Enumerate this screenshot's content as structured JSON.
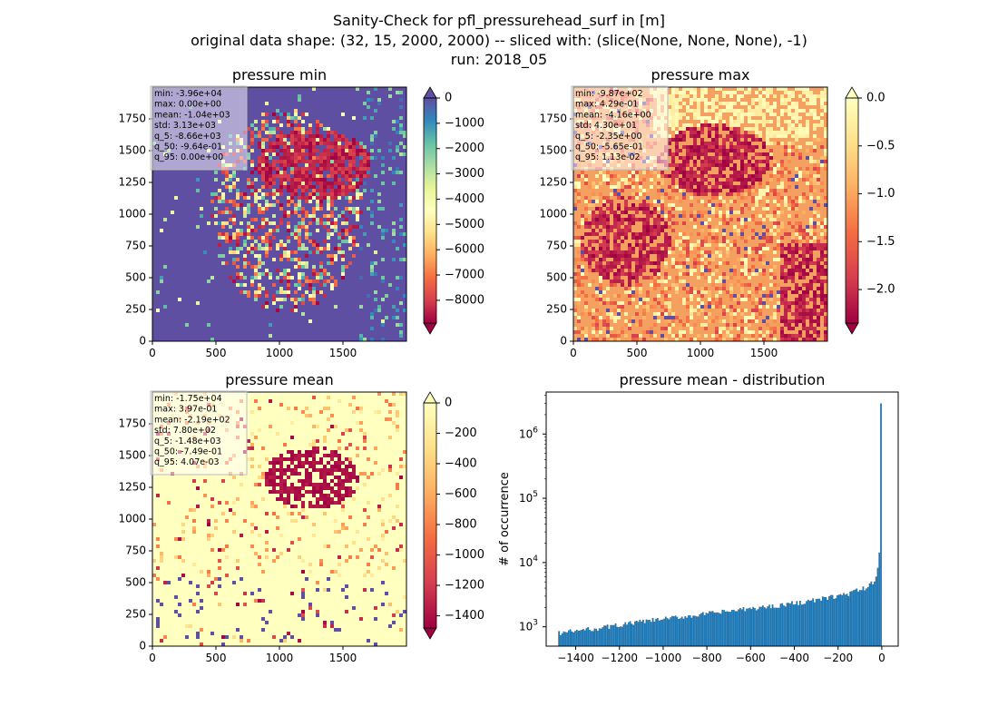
{
  "figure": {
    "title_lines": [
      "Sanity-Check for pfl_pressurehead_surf in [m]",
      "original data shape: (32, 15, 2000, 2000) -- sliced with: (slice(None, None, None), -1)",
      "run: 2018_05"
    ]
  },
  "chart_data": [
    {
      "type": "heatmap",
      "title": "pressure min",
      "colormap": "Spectral",
      "colormap_stops": [
        "#9e0142",
        "#d53e4f",
        "#f46d43",
        "#fdae61",
        "#fee08b",
        "#ffffbf",
        "#e6f598",
        "#abdda4",
        "#66c2a5",
        "#3288bd",
        "#5e4fa2"
      ],
      "x_ticks": [
        "0",
        "500",
        "1000",
        "1500"
      ],
      "y_ticks": [
        "0",
        "250",
        "500",
        "750",
        "1000",
        "1250",
        "1500",
        "1750"
      ],
      "xlim": [
        0,
        2000
      ],
      "ylim": [
        0,
        2000
      ],
      "colorbar": {
        "range": [
          -8900,
          0
        ],
        "ticks": [
          0,
          -1000,
          -2000,
          -3000,
          -4000,
          -5000,
          -6000,
          -7000,
          -8000
        ],
        "tick_labels": [
          "0",
          "−1000",
          "−2000",
          "−3000",
          "−4000",
          "−5000",
          "−6000",
          "−7000",
          "−8000"
        ],
        "extend": "both"
      },
      "stats": [
        "min: -3.96e+04",
        "max: 0.00e+00",
        "mean: -1.04e+03",
        "std: 3.13e+03",
        "q_5: -8.66e+03",
        "q_50: -9.64e-01",
        "q_95: 0.00e+00"
      ],
      "background_color": "#5e4fa2"
    },
    {
      "type": "heatmap",
      "title": "pressure max",
      "colormap": "Spectral",
      "colormap_stops": [
        "#9e0142",
        "#d53e4f",
        "#f46d43",
        "#fdae61",
        "#fee08b",
        "#ffffbf"
      ],
      "x_ticks": [
        "0",
        "500",
        "1000",
        "1500"
      ],
      "y_ticks": [
        "0",
        "250",
        "500",
        "750",
        "1000",
        "1250",
        "1500",
        "1750"
      ],
      "xlim": [
        0,
        2000
      ],
      "ylim": [
        0,
        2000
      ],
      "colorbar": {
        "range": [
          -2.35,
          0.0
        ],
        "ticks": [
          0.0,
          -0.5,
          -1.0,
          -1.5,
          -2.0
        ],
        "tick_labels": [
          "0.0",
          "−0.5",
          "−1.0",
          "−1.5",
          "−2.0"
        ],
        "extend": "both"
      },
      "stats": [
        "min: -9.87e+02",
        "max: 4.29e-01",
        "mean: -4.16e+00",
        "std: 4.30e+01",
        "q_5: -2.35e+00",
        "q_50: -5.65e-01",
        "q_95: 1.13e-02"
      ],
      "background_color": "#f4a060"
    },
    {
      "type": "heatmap",
      "title": "pressure mean",
      "colormap": "Spectral",
      "colormap_stops": [
        "#9e0142",
        "#d53e4f",
        "#f46d43",
        "#fdae61",
        "#fee08b",
        "#ffffbf"
      ],
      "x_ticks": [
        "0",
        "500",
        "1000",
        "1500"
      ],
      "y_ticks": [
        "0",
        "250",
        "500",
        "750",
        "1000",
        "1250",
        "1500",
        "1750"
      ],
      "xlim": [
        0,
        2000
      ],
      "ylim": [
        0,
        2000
      ],
      "colorbar": {
        "range": [
          -1480,
          0
        ],
        "ticks": [
          0,
          -200,
          -400,
          -600,
          -800,
          -1000,
          -1200,
          -1400
        ],
        "tick_labels": [
          "0",
          "−200",
          "−400",
          "−600",
          "−800",
          "−1000",
          "−1200",
          "−1400"
        ],
        "extend": "both"
      },
      "stats": [
        "min: -1.75e+04",
        "max: 3.97e-01",
        "mean: -2.19e+02",
        "std: 7.80e+02",
        "q_5: -1.48e+03",
        "q_50: -7.49e-01",
        "q_95: 4.07e-03"
      ],
      "background_color": "#ffffbf"
    },
    {
      "type": "bar",
      "title": "pressure mean - distribution",
      "ylabel": "# of occurrence",
      "yscale": "log",
      "bar_color": "#1f77b4",
      "xlim": [
        -1535,
        75
      ],
      "ylim": [
        500,
        4500000
      ],
      "x_ticks": [
        -1400,
        -1200,
        -1000,
        -800,
        -600,
        -400,
        -200,
        0
      ],
      "x_tick_labels": [
        "−1400",
        "−1200",
        "−1000",
        "−800",
        "−600",
        "−400",
        "−200",
        "0"
      ],
      "y_ticks": [
        1000,
        10000,
        100000,
        1000000
      ],
      "y_tick_base": "10",
      "y_tick_exponents": [
        "3",
        "4",
        "5",
        "6"
      ],
      "bins": {
        "start": -1480,
        "width": 7.4,
        "count": 200
      },
      "counts_anchor_x": [
        -1480,
        -1300,
        -1100,
        -900,
        -700,
        -500,
        -300,
        -150,
        -60,
        -30,
        -20,
        -12,
        -8,
        -5,
        -3,
        -1
      ],
      "counts_anchor_y": [
        800,
        950,
        1200,
        1450,
        1750,
        2100,
        2600,
        3300,
        4200,
        5500,
        7500,
        13000,
        20000,
        40000,
        28000,
        3000000
      ]
    }
  ]
}
